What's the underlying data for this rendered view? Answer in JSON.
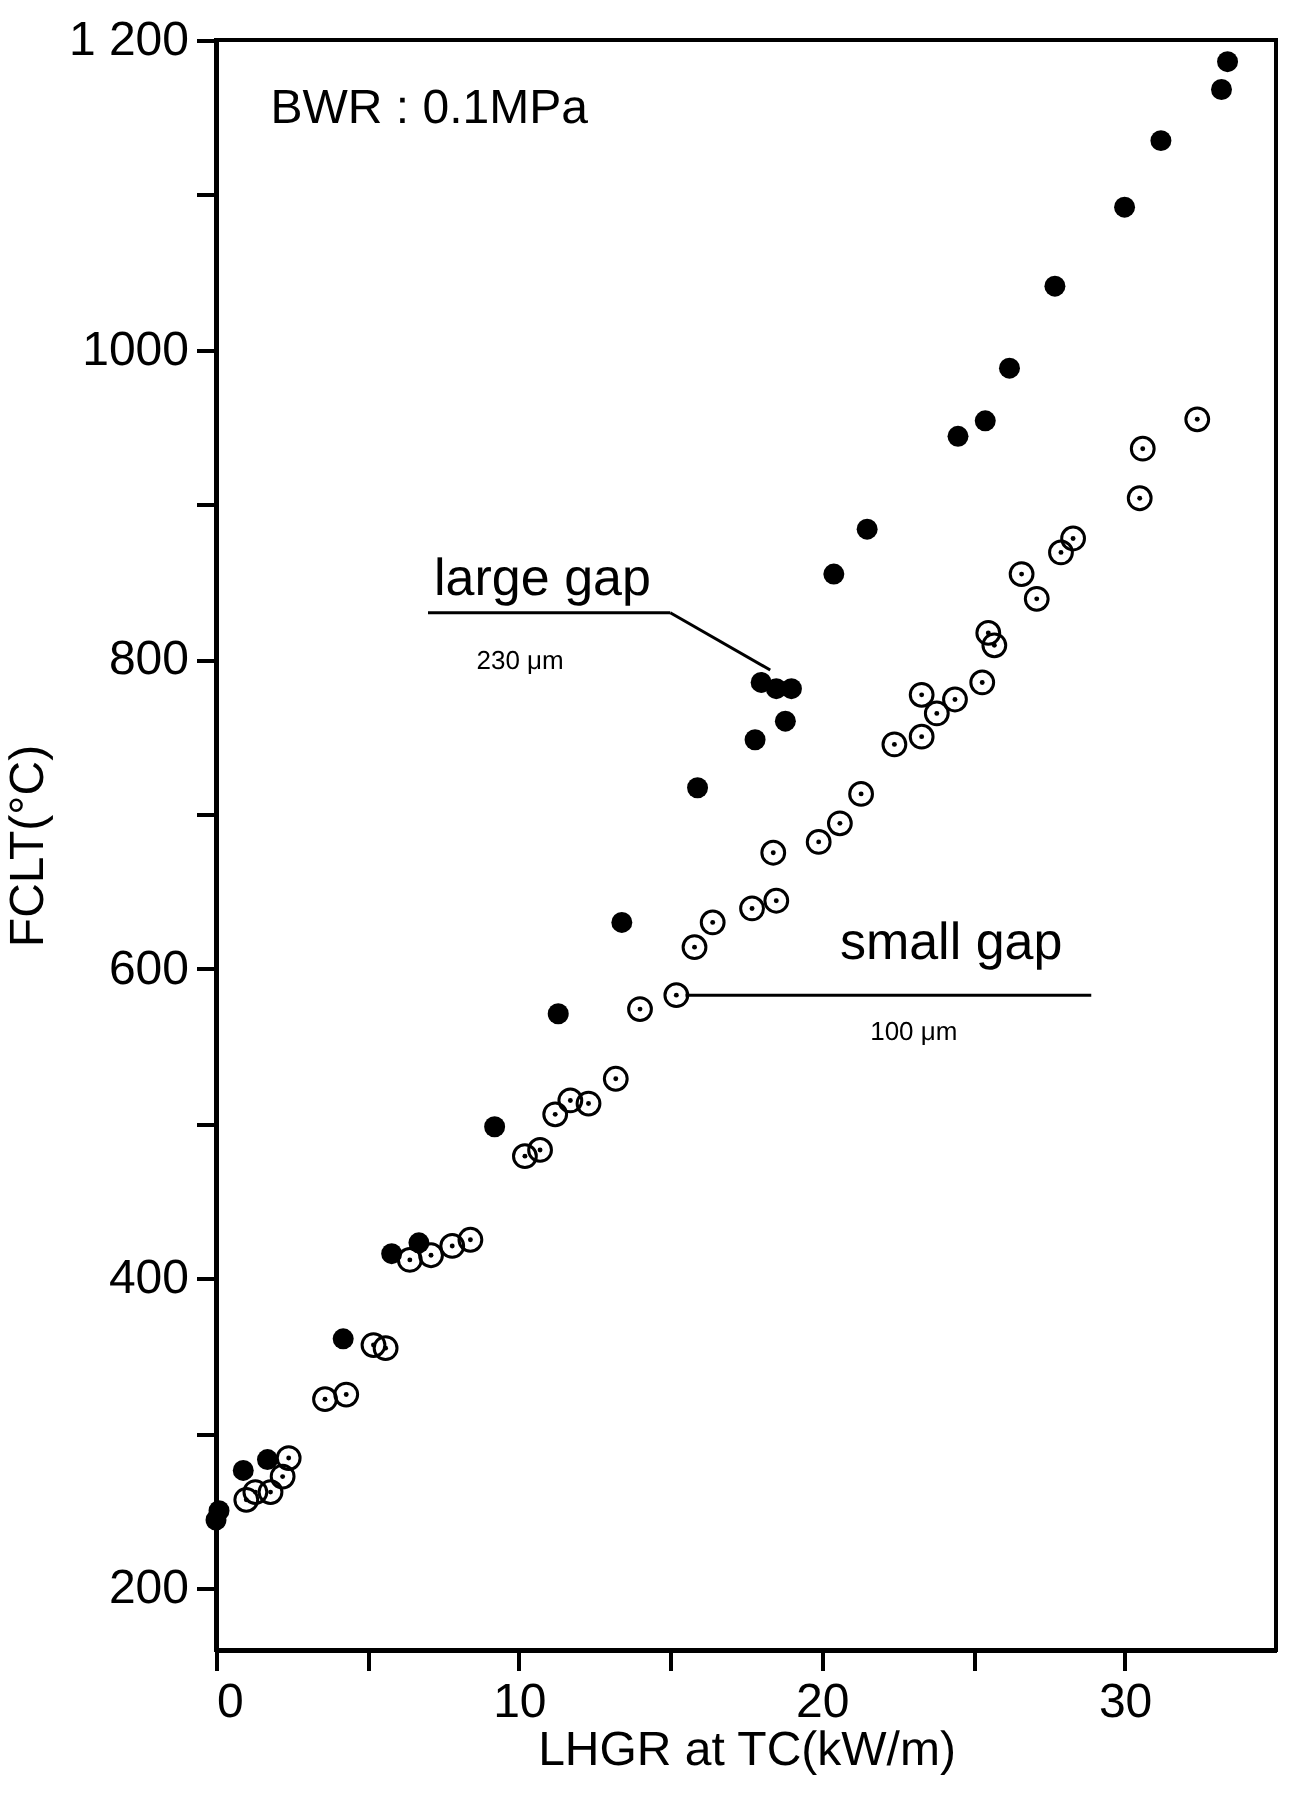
{
  "chart_data": {
    "type": "scatter",
    "xlabel": "LHGR at TC(kW/m)",
    "ylabel": "FCLT(°C)",
    "xlim": [
      0,
      35
    ],
    "ylim": [
      160,
      1200
    ],
    "xticks": [
      0,
      {
        "value": 5,
        "label": null
      },
      10,
      {
        "value": 15,
        "label": null
      },
      20,
      {
        "value": 25,
        "label": null
      },
      30
    ],
    "yticks": [
      200,
      {
        "value": 300,
        "label": null
      },
      400,
      {
        "value": 500,
        "label": null
      },
      600,
      {
        "value": 700,
        "label": null
      },
      800,
      {
        "value": 900,
        "label": null
      },
      1000,
      {
        "value": 1100,
        "label": null
      },
      {
        "value": 1200,
        "label": "1 200"
      }
    ],
    "grid": false,
    "marker": "circle",
    "annotations": [
      "BWR : 0.1MPa",
      {
        "text": "large gap",
        "x": 18.3,
        "y": 793
      },
      "230 μm",
      {
        "text": "small gap",
        "x": 15.2,
        "y": 583
      },
      "100 μm"
    ],
    "series": [
      {
        "color": "#000000",
        "x": [
          0.0,
          0.1,
          0.9,
          1.7,
          4.2,
          5.8,
          6.7,
          9.2,
          11.3,
          13.4,
          15.9,
          17.8,
          18.0,
          18.5,
          18.8,
          19.0,
          20.4,
          21.5,
          24.5,
          25.4,
          26.2,
          27.7,
          30.0,
          31.2,
          33.2,
          33.4
        ],
        "values": [
          244,
          250,
          276,
          283,
          361,
          416,
          423,
          498,
          571,
          630,
          717,
          748,
          785,
          781,
          760,
          781,
          855,
          884,
          944,
          954,
          988,
          1041,
          1092,
          1135,
          1168,
          1186
        ]
      },
      {
        "color": "#000000",
        "x": [
          1.0,
          1.3,
          1.8,
          2.2,
          2.4,
          3.6,
          4.3,
          5.2,
          5.6,
          6.4,
          7.1,
          7.8,
          8.4,
          10.2,
          10.7,
          11.2,
          11.7,
          12.3,
          13.2,
          14.0,
          15.2,
          15.8,
          16.4,
          17.7,
          18.5,
          18.4,
          19.9,
          20.6,
          21.3,
          22.4,
          23.3,
          23.3,
          23.8,
          24.4,
          25.3,
          25.7,
          25.5,
          27.1,
          26.6,
          27.9,
          28.3,
          30.5,
          30.6,
          32.4
        ],
        "values": [
          257,
          262,
          262,
          272,
          284,
          322,
          325,
          357,
          355,
          412,
          415,
          421,
          425,
          479,
          483,
          506,
          515,
          513,
          529,
          574,
          583,
          614,
          630,
          639,
          644,
          675,
          682,
          694,
          713,
          745,
          750,
          777,
          765,
          774,
          785,
          809,
          817,
          839,
          855,
          869,
          878,
          904,
          936,
          955
        ]
      }
    ]
  }
}
